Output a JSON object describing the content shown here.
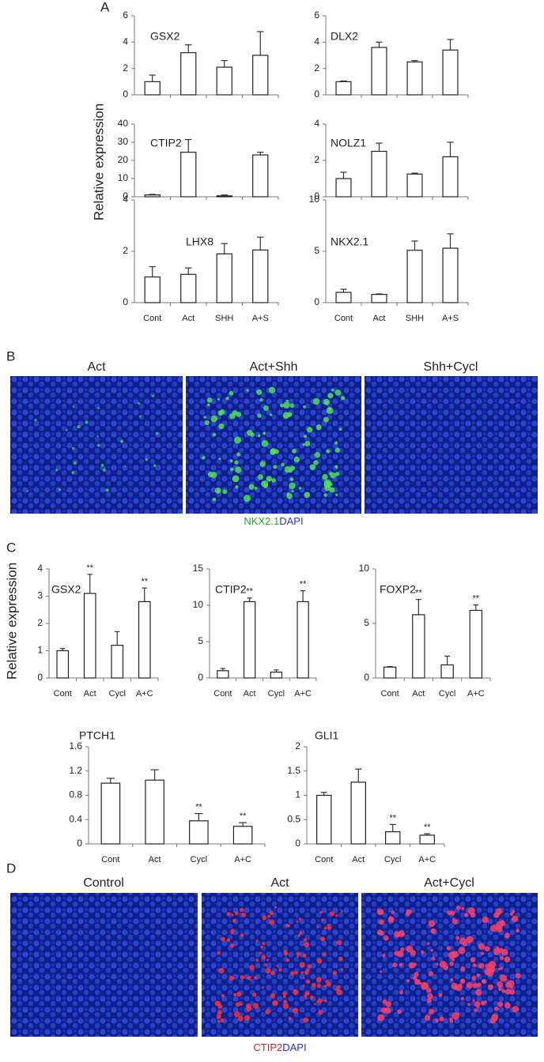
{
  "panel_labels": [
    "A",
    "B",
    "C",
    "D"
  ],
  "panel_a_ylabel": "Relative expression",
  "panel_c_ylabel": "Relative expression",
  "panel_b": {
    "titles": [
      "Act",
      "Act+Shh",
      "Shh+Cycl"
    ],
    "caption": [
      "NKX2.1",
      "DAPI"
    ]
  },
  "panel_d": {
    "titles": [
      "Control",
      "Act",
      "Act+Cycl"
    ],
    "caption": [
      "CTIP2",
      "DAPI"
    ]
  },
  "chart_data": [
    {
      "type": "bar",
      "title": "GSX2",
      "color": "#ffffff",
      "categories": [
        null,
        null,
        null,
        null
      ],
      "values": [
        1.0,
        3.2,
        2.1,
        3.0
      ],
      "errors": [
        0.5,
        0.6,
        0.5,
        1.8
      ],
      "ylim": [
        0,
        6
      ],
      "yticks": [
        0,
        2,
        4,
        6
      ]
    },
    {
      "type": "bar",
      "title": "DLX2",
      "color": "#ffffff",
      "categories": [
        null,
        null,
        null,
        null
      ],
      "values": [
        1.0,
        3.6,
        2.5,
        3.4
      ],
      "errors": [
        0.05,
        0.4,
        0.1,
        0.8
      ],
      "ylim": [
        0,
        6
      ],
      "yticks": [
        0,
        2,
        4,
        6
      ]
    },
    {
      "type": "bar",
      "title": "CTIP2",
      "color": "#ffffff",
      "categories": [
        null,
        null,
        null,
        null
      ],
      "values": [
        1.0,
        24.5,
        0.5,
        23
      ],
      "errors": [
        0.3,
        7,
        0.5,
        1.5
      ],
      "ylim": [
        0,
        40
      ],
      "yticks": [
        0,
        10,
        20,
        30,
        40
      ]
    },
    {
      "type": "bar",
      "title": "NOLZ1",
      "color": "#ffffff",
      "categories": [
        null,
        null,
        null,
        null
      ],
      "values": [
        1.0,
        2.5,
        1.25,
        2.2
      ],
      "errors": [
        0.35,
        0.45,
        0.05,
        0.8
      ],
      "ylim": [
        0,
        4
      ],
      "yticks": [
        0,
        2,
        4
      ]
    },
    {
      "type": "bar",
      "title": "LHX8",
      "color": "#ffffff",
      "categories": [
        "Cont",
        "Act",
        "SHH",
        "A+S"
      ],
      "values": [
        1.0,
        1.1,
        1.9,
        2.05
      ],
      "errors": [
        0.4,
        0.25,
        0.4,
        0.5
      ],
      "ylim": [
        0,
        4
      ],
      "yticks": [
        0,
        2,
        4
      ]
    },
    {
      "type": "bar",
      "title": "NKX2.1",
      "color": "#ffffff",
      "categories": [
        "Cont",
        "Act",
        "SHH",
        "A+S"
      ],
      "values": [
        1.0,
        0.8,
        5.1,
        5.3
      ],
      "errors": [
        0.3,
        0.05,
        0.9,
        1.4
      ],
      "ylim": [
        0,
        10
      ],
      "yticks": [
        0,
        5,
        10
      ]
    },
    {
      "type": "bar",
      "title": "GSX2",
      "color": "#ffffff",
      "categories": [
        "Cont",
        "Act",
        "Cycl",
        "A+C"
      ],
      "values": [
        1.0,
        3.1,
        1.2,
        2.8
      ],
      "errors": [
        0.08,
        0.7,
        0.5,
        0.5
      ],
      "significance": [
        null,
        "**",
        null,
        "**"
      ],
      "ylim": [
        0,
        4
      ],
      "yticks": [
        0,
        1,
        2,
        3,
        4
      ]
    },
    {
      "type": "bar",
      "title": "CTIP2",
      "color": "#ffffff",
      "categories": [
        "Cont",
        "Act",
        "Cycl",
        "A+C"
      ],
      "values": [
        1.0,
        10.5,
        0.8,
        10.5
      ],
      "errors": [
        0.3,
        0.5,
        0.3,
        1.5
      ],
      "significance": [
        null,
        "**",
        null,
        "**"
      ],
      "ylim": [
        0,
        15
      ],
      "yticks": [
        0,
        5,
        10,
        15
      ]
    },
    {
      "type": "bar",
      "title": "FOXP2",
      "color": "#ffffff",
      "categories": [
        "Cont",
        "Act",
        "Cycl",
        "A+C"
      ],
      "values": [
        1.0,
        5.8,
        1.2,
        6.2
      ],
      "errors": [
        0.05,
        1.4,
        0.8,
        0.5
      ],
      "significance": [
        null,
        "**",
        null,
        "**"
      ],
      "ylim": [
        0,
        10
      ],
      "yticks": [
        0,
        5,
        10
      ]
    },
    {
      "type": "bar",
      "title": "PTCH1",
      "color": "#ffffff",
      "categories": [
        "Cont",
        "Act",
        "Cycl",
        "A+C"
      ],
      "values": [
        1.0,
        1.05,
        0.38,
        0.29
      ],
      "errors": [
        0.08,
        0.17,
        0.12,
        0.06
      ],
      "significance": [
        null,
        null,
        "**",
        "**"
      ],
      "ylim": [
        0,
        1.6
      ],
      "yticks": [
        0,
        0.4,
        0.8,
        1.2,
        1.6
      ]
    },
    {
      "type": "bar",
      "title": "GLI1",
      "color": "#ffffff",
      "categories": [
        "Cont",
        "Act",
        "Cycl",
        "A+C"
      ],
      "values": [
        1.0,
        1.27,
        0.25,
        0.18
      ],
      "errors": [
        0.06,
        0.27,
        0.15,
        0.03
      ],
      "significance": [
        null,
        null,
        "**",
        "**"
      ],
      "ylim": [
        0,
        2
      ],
      "yticks": [
        0,
        0.5,
        1,
        1.5,
        2
      ]
    }
  ]
}
